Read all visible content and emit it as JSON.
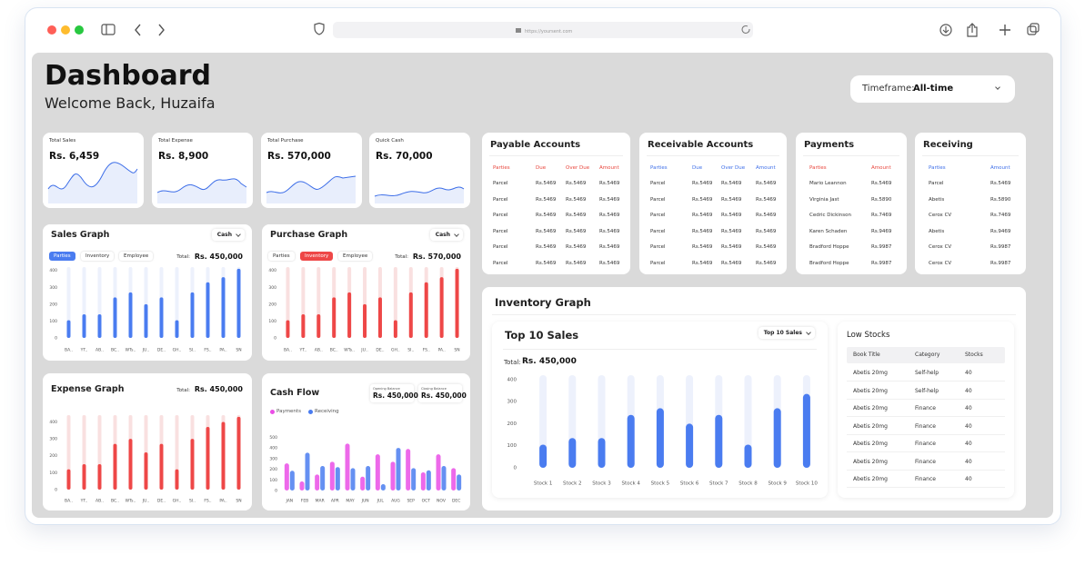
{
  "browser": {
    "url": "https://yoursent.com"
  },
  "header": {
    "title": "Dashboard",
    "subtitle": "Welcome Back, Huzaifa",
    "timeframe_label": "Timeframe:",
    "timeframe_value": "All-time"
  },
  "stat_cards": [
    {
      "label": "Total Sales",
      "value": "Rs. 6,459"
    },
    {
      "label": "Total Expense",
      "value": "Rs. 8,900"
    },
    {
      "label": "Total Purchase",
      "value": "Rs. 570,000"
    },
    {
      "label": "Quick Cash",
      "value": "Rs. 70,000"
    }
  ],
  "sales_graph": {
    "type": "bar",
    "title": "Sales Graph",
    "dropdown": "Cash",
    "tabs": [
      "Parties",
      "Inventory",
      "Employee"
    ],
    "active_tab": 0,
    "total_label": "Total:",
    "total_value": "Rs. 450,000",
    "categories": [
      "BA..",
      "YT..",
      "AB..",
      "BC..",
      "WTs..",
      "JU..",
      "DE..",
      "GH..",
      "SI..",
      "FS..",
      "PA..",
      "SN"
    ],
    "values": [
      105,
      140,
      140,
      240,
      270,
      200,
      240,
      105,
      270,
      330,
      360,
      410
    ],
    "color": "#4a7cf0",
    "track_color": "#edf1fc",
    "ylim": [
      0,
      420
    ],
    "yticks": [
      0,
      100,
      200,
      300,
      400
    ]
  },
  "purchase_graph": {
    "type": "bar",
    "title": "Purchase Graph",
    "dropdown": "Cash",
    "tabs": [
      "Parties",
      "Inventory",
      "Employee"
    ],
    "active_tab": 1,
    "total_label": "Total:",
    "total_value": "Rs. 570,000",
    "categories": [
      "BA..",
      "YT..",
      "AB..",
      "BC..",
      "WTs..",
      "JU..",
      "DE..",
      "GH..",
      "SI..",
      "FS..",
      "PA..",
      "SN"
    ],
    "values": [
      105,
      140,
      140,
      240,
      270,
      200,
      240,
      105,
      270,
      330,
      360,
      410
    ],
    "color": "#ee4747",
    "track_color": "#f9e0e0",
    "ylim": [
      0,
      420
    ],
    "yticks": [
      0,
      100,
      200,
      300,
      400
    ]
  },
  "expense_graph": {
    "type": "bar",
    "title": "Expense Graph",
    "total_label": "Total:",
    "total_value": "Rs. 450,000",
    "categories": [
      "BA..",
      "YT..",
      "AB..",
      "BC..",
      "WTs..",
      "JU..",
      "DE..",
      "GH..",
      "SI..",
      "FS..",
      "PA..",
      "SN"
    ],
    "values": [
      120,
      150,
      150,
      270,
      300,
      220,
      270,
      120,
      300,
      370,
      400,
      430
    ],
    "color": "#ee4747",
    "track_color": "#f9e0e0",
    "ylim": [
      0,
      440
    ],
    "yticks": [
      0,
      100,
      200,
      300,
      400
    ]
  },
  "cash_flow": {
    "type": "bar",
    "title": "Cash Flow",
    "opening": {
      "label": "Opening Balance",
      "value": "Rs. 450,000"
    },
    "closing": {
      "label": "Closing Balance",
      "value": "Rs. 450,000"
    },
    "categories": [
      "JAN",
      "FEB",
      "MAR",
      "APR",
      "MAY",
      "JUN",
      "JUL",
      "AUG",
      "SEP",
      "OCT",
      "NOV",
      "DEC"
    ],
    "series": [
      {
        "name": "Payments",
        "color": "#ea4fe6",
        "values": [
          255,
          85,
          150,
          270,
          440,
          130,
          340,
          270,
          390,
          170,
          340,
          210
        ]
      },
      {
        "name": "Receiving",
        "color": "#4a7cf0",
        "values": [
          185,
          355,
          230,
          220,
          210,
          230,
          60,
          400,
          210,
          190,
          230,
          150
        ]
      }
    ],
    "ylim": [
      0,
      520
    ],
    "yticks": [
      0,
      100,
      200,
      300,
      400,
      500
    ]
  },
  "payable_accounts": {
    "title": "Payable Accounts",
    "header_color": "#e8453c",
    "headers": [
      "Parties",
      "Due",
      "Over Due",
      "Amount"
    ],
    "rows": [
      [
        "Parcel",
        "Rs.5469",
        "Rs.5469",
        "Rs.5469"
      ],
      [
        "Parcel",
        "Rs.5469",
        "Rs.5469",
        "Rs.5469"
      ],
      [
        "Parcel",
        "Rs.5469",
        "Rs.5469",
        "Rs.5469"
      ],
      [
        "Parcel",
        "Rs.5469",
        "Rs.5469",
        "Rs.5469"
      ],
      [
        "Parcel",
        "Rs.5469",
        "Rs.5469",
        "Rs.5469"
      ],
      [
        "Parcel",
        "Rs.5469",
        "Rs.5469",
        "Rs.5469"
      ]
    ]
  },
  "receivable_accounts": {
    "title": "Receivable Accounts",
    "header_color": "#3d6ee8",
    "headers": [
      "Parties",
      "Due",
      "Over Due",
      "Amount"
    ],
    "rows": [
      [
        "Parcel",
        "Rs.5469",
        "Rs.5469",
        "Rs.5469"
      ],
      [
        "Parcel",
        "Rs.5469",
        "Rs.5469",
        "Rs.5469"
      ],
      [
        "Parcel",
        "Rs.5469",
        "Rs.5469",
        "Rs.5469"
      ],
      [
        "Parcel",
        "Rs.5469",
        "Rs.5469",
        "Rs.5469"
      ],
      [
        "Parcel",
        "Rs.5469",
        "Rs.5469",
        "Rs.5469"
      ],
      [
        "Parcel",
        "Rs.5469",
        "Rs.5469",
        "Rs.5469"
      ]
    ]
  },
  "payments": {
    "title": "Payments",
    "header_color": "#e8453c",
    "headers": [
      "Parties",
      "Amount"
    ],
    "rows": [
      [
        "Mario Leannon",
        "Rs.5469"
      ],
      [
        "Virginia Jast",
        "Rs.5890"
      ],
      [
        "Cedric Dickinson",
        "Rs.7469"
      ],
      [
        "Karen Schaden",
        "Rs.9469"
      ],
      [
        "Bradford Hoppe",
        "Rs.9987"
      ],
      [
        "Bradford Hoppe",
        "Rs.9987"
      ]
    ]
  },
  "receiving": {
    "title": "Receiving",
    "header_color": "#3d6ee8",
    "headers": [
      "Parties",
      "Amount"
    ],
    "rows": [
      [
        "Parcel",
        "Rs.5469"
      ],
      [
        "Abetis",
        "Rs.5890"
      ],
      [
        "Cerox CV",
        "Rs.7469"
      ],
      [
        "Abetis",
        "Rs.9469"
      ],
      [
        "Cerox CV",
        "Rs.9987"
      ],
      [
        "Cerox CV",
        "Rs.9987"
      ]
    ]
  },
  "inventory": {
    "title": "Inventory Graph",
    "top_sales": {
      "type": "bar",
      "title": "Top 10 Sales",
      "dropdown": "Top 10 Sales",
      "total_label": "Total:",
      "total_value": "Rs. 450,000",
      "categories": [
        "Stock 1",
        "Stock 2",
        "Stock 3",
        "Stock 4",
        "Stock 5",
        "Stock 6",
        "Stock 7",
        "Stock 8",
        "Stock 9",
        "Stock 10"
      ],
      "values": [
        105,
        135,
        135,
        240,
        270,
        200,
        240,
        105,
        270,
        335
      ],
      "color": "#4a7cf0",
      "track_color": "#edf1fc",
      "ylim": [
        0,
        420
      ],
      "yticks": [
        0,
        100,
        200,
        300,
        400
      ]
    },
    "low_stocks": {
      "title": "Low Stocks",
      "headers": [
        "Book Title",
        "Category",
        "Stocks"
      ],
      "rows": [
        [
          "Abetis 20mg",
          "Self-help",
          "40"
        ],
        [
          "Abetis 20mg",
          "Self-help",
          "40"
        ],
        [
          "Abetis 20mg",
          "Finance",
          "40"
        ],
        [
          "Abetis 20mg",
          "Finance",
          "40"
        ],
        [
          "Abetis 20mg",
          "Finance",
          "40"
        ],
        [
          "Abetis 20mg",
          "Finance",
          "40"
        ],
        [
          "Abetis 20mg",
          "Finance",
          "40"
        ]
      ]
    }
  }
}
